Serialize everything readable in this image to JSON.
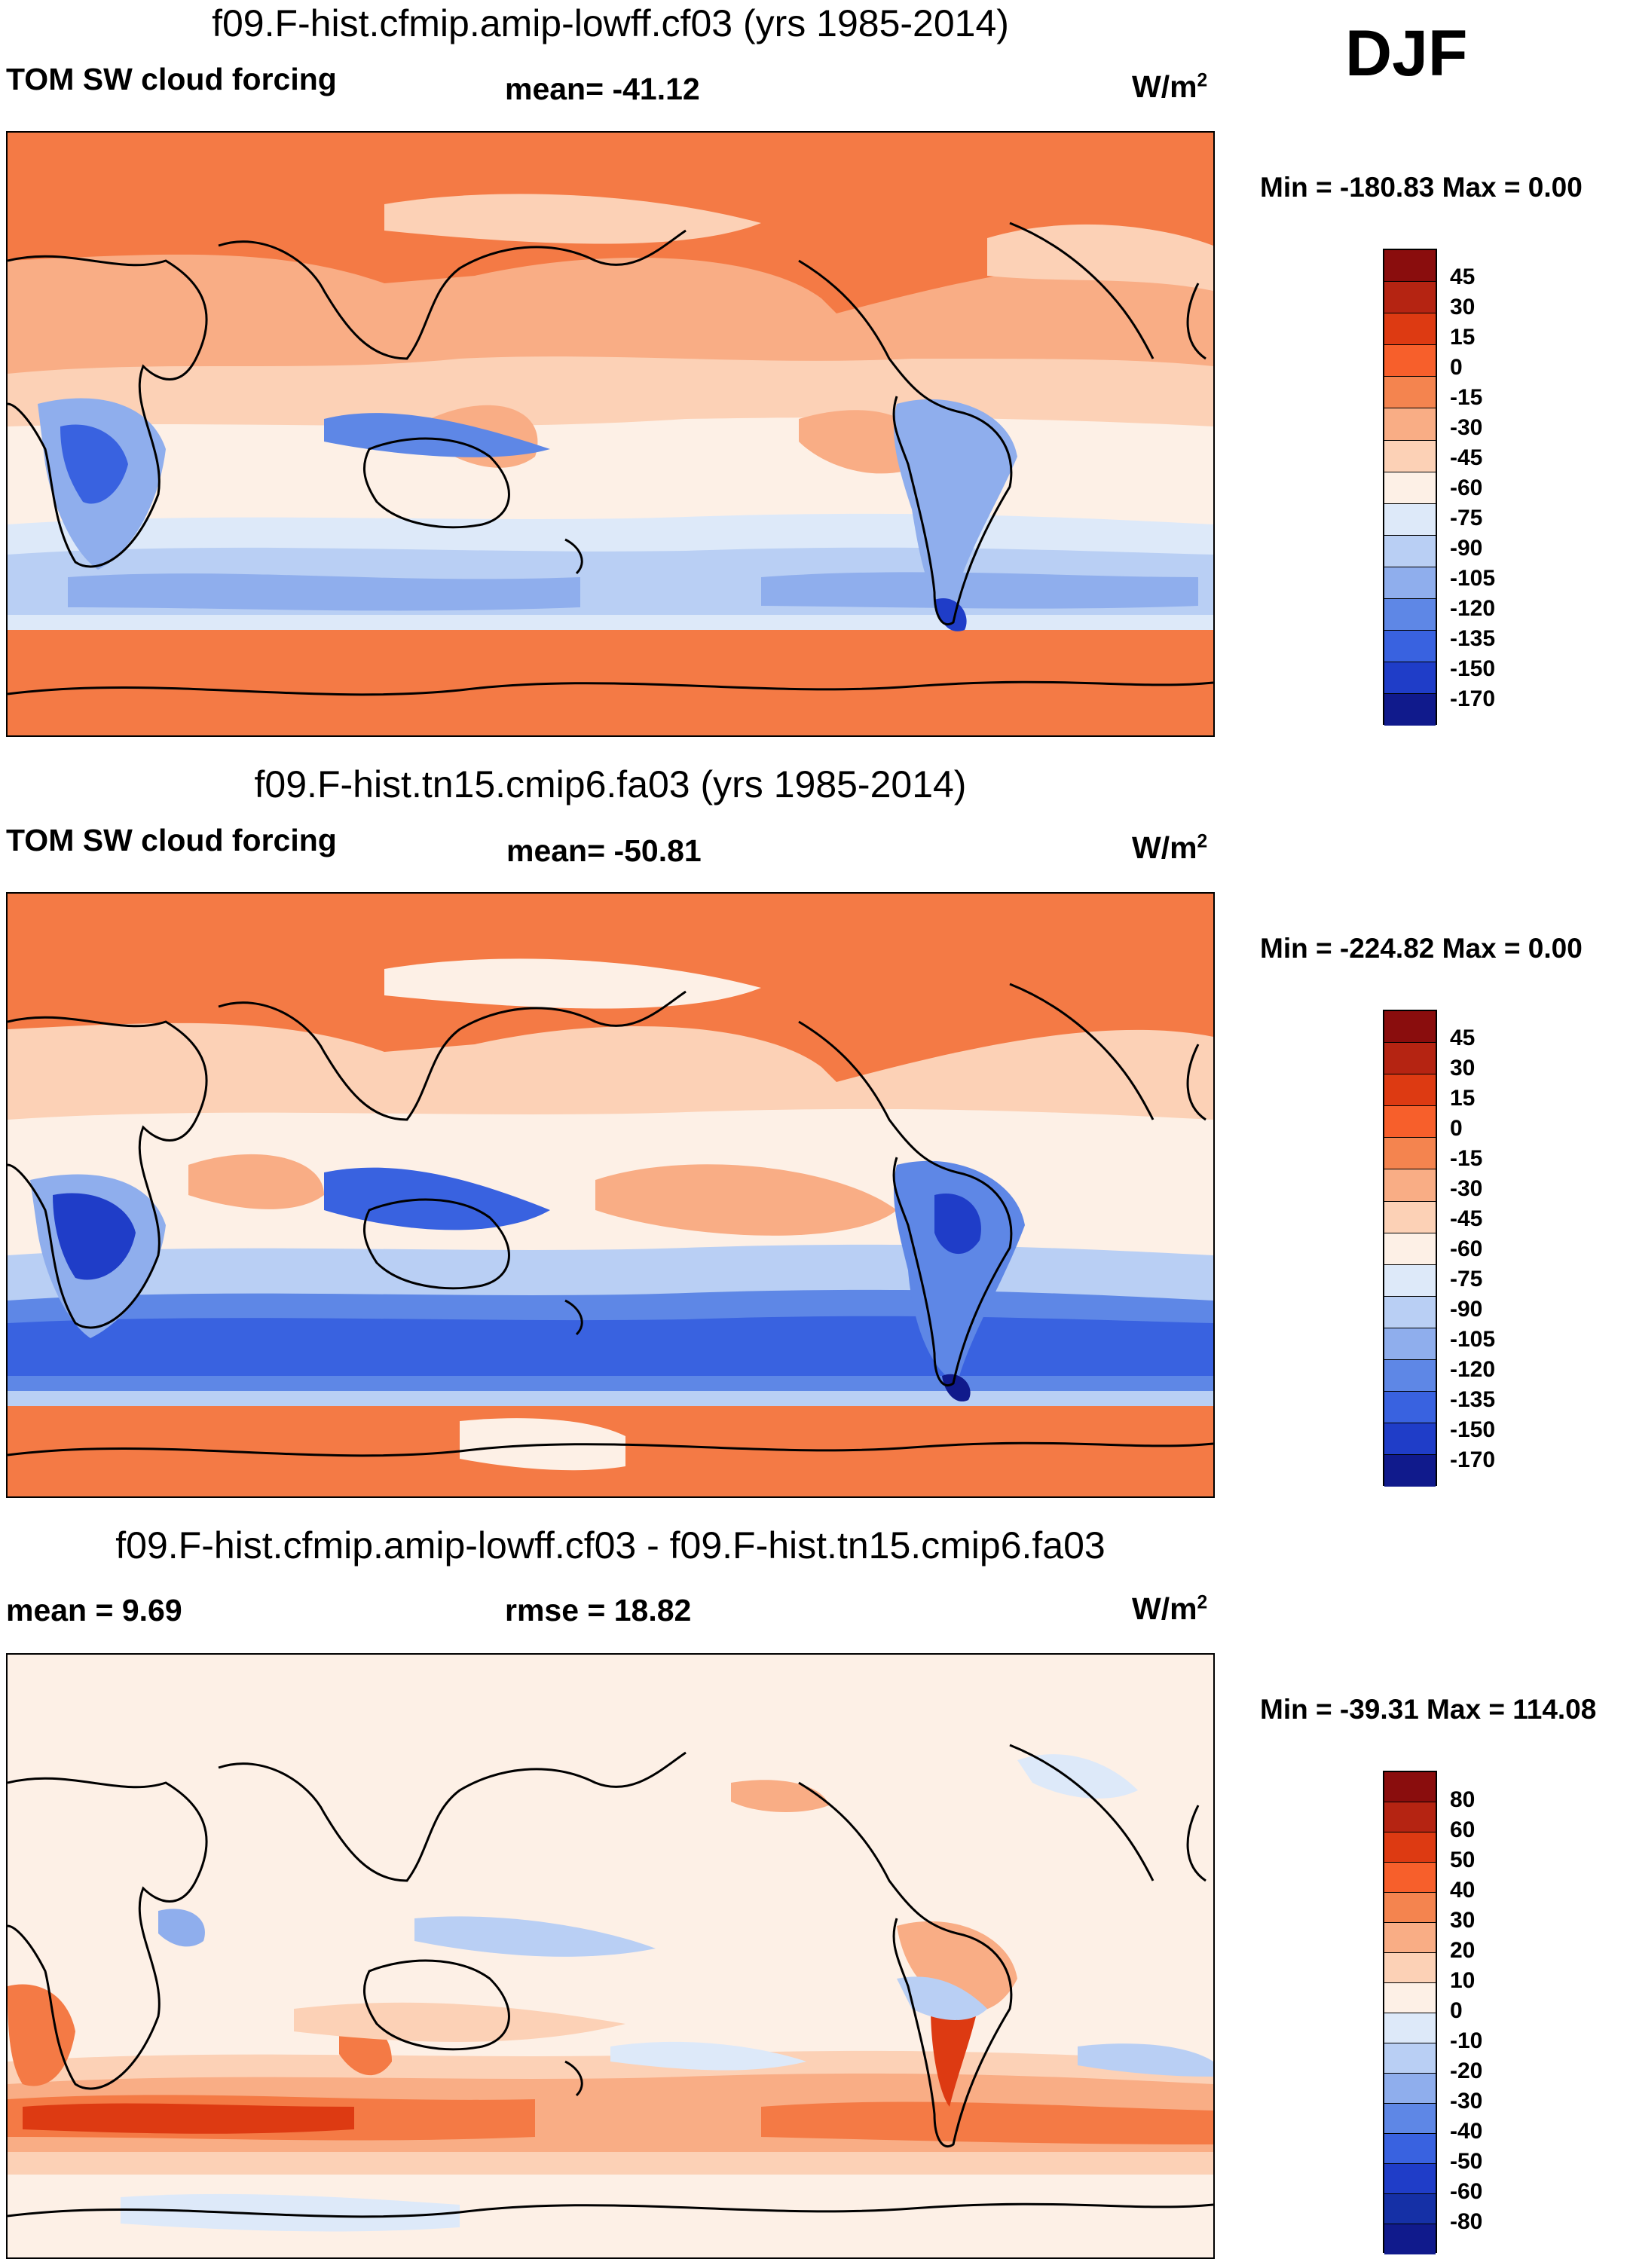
{
  "season": "DJF",
  "colors": {
    "ramp14": [
      "#8a0d0d",
      "#b52412",
      "#dd3a12",
      "#f75f2b",
      "#f4844f",
      "#f9ad85",
      "#fcd1b6",
      "#fdf0e6",
      "#dde9f9",
      "#b9cff4",
      "#8faeed",
      "#5e87e6",
      "#3962e0",
      "#1f3dc8",
      "#101a8c"
    ],
    "ramp16": [
      "#8a0d0d",
      "#b52412",
      "#dd3a12",
      "#f75f2b",
      "#f4844f",
      "#f9ad85",
      "#fcd1b6",
      "#fdf0e6",
      "#dde9f9",
      "#b9cff4",
      "#8faeed",
      "#5e87e6",
      "#3962e0",
      "#1f3dc8",
      "#1530a6",
      "#101a8c"
    ]
  },
  "panels": [
    {
      "title": "f09.F-hist.cfmip.amip-lowff.cf03 (yrs 1985-2014)",
      "left_label": "TOM SW cloud forcing",
      "center_label": "mean= -41.12",
      "units": "W/m",
      "units_sup": "2",
      "minmax": "Min = -180.83 Max =   0.00",
      "colorbar": {
        "levels": [
          "45",
          "30",
          "15",
          "0",
          "-15",
          "-30",
          "-45",
          "-60",
          "-75",
          "-90",
          "-105",
          "-120",
          "-135",
          "-150",
          "-170"
        ]
      }
    },
    {
      "title": "f09.F-hist.tn15.cmip6.fa03 (yrs 1985-2014)",
      "left_label": "TOM SW cloud forcing",
      "center_label": "mean= -50.81",
      "units": "W/m",
      "units_sup": "2",
      "minmax": "Min = -224.82 Max =   0.00",
      "colorbar": {
        "levels": [
          "45",
          "30",
          "15",
          "0",
          "-15",
          "-30",
          "-45",
          "-60",
          "-75",
          "-90",
          "-105",
          "-120",
          "-135",
          "-150",
          "-170"
        ]
      }
    },
    {
      "title": "f09.F-hist.cfmip.amip-lowff.cf03 - f09.F-hist.tn15.cmip6.fa03",
      "left_label": "mean =   9.69",
      "center_label": "rmse =  18.82",
      "units": "W/m",
      "units_sup": "2",
      "minmax": "Min = -39.31 Max = 114.08",
      "colorbar": {
        "levels": [
          "80",
          "60",
          "50",
          "40",
          "30",
          "20",
          "10",
          "0",
          "-10",
          "-20",
          "-30",
          "-40",
          "-50",
          "-60",
          "-80"
        ]
      }
    }
  ]
}
